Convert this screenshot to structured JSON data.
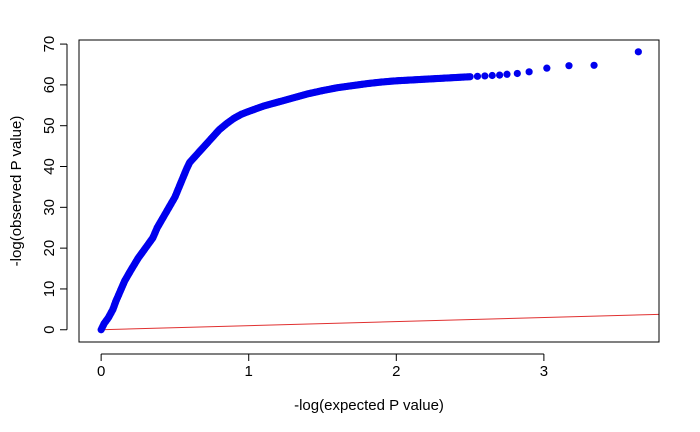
{
  "chart_data": {
    "type": "scatter",
    "title": "",
    "xlabel": "-log(expected P value)",
    "ylabel": "-log(observed P value)",
    "xlim": [
      -0.15,
      3.78
    ],
    "ylim": [
      -3,
      71
    ],
    "x_ticks": [
      0,
      1,
      2,
      3
    ],
    "y_ticks": [
      0,
      10,
      20,
      30,
      40,
      50,
      60,
      70
    ],
    "grid": false,
    "colors": {
      "points": "#0000ee",
      "reference_line": "#e03030",
      "axes": "#000000"
    },
    "series": [
      {
        "type": "scatter",
        "dense_curve": [
          [
            0,
            0
          ],
          [
            0.02,
            1.5
          ],
          [
            0.05,
            3
          ],
          [
            0.08,
            5
          ],
          [
            0.1,
            7
          ],
          [
            0.13,
            9.5
          ],
          [
            0.16,
            12
          ],
          [
            0.2,
            14.5
          ],
          [
            0.25,
            17.5
          ],
          [
            0.3,
            20
          ],
          [
            0.35,
            22.5
          ],
          [
            0.38,
            25
          ],
          [
            0.42,
            27.5
          ],
          [
            0.46,
            30
          ],
          [
            0.5,
            32.5
          ],
          [
            0.54,
            36
          ],
          [
            0.58,
            39.5
          ],
          [
            0.6,
            41
          ],
          [
            0.65,
            43
          ],
          [
            0.7,
            45
          ],
          [
            0.75,
            47
          ],
          [
            0.8,
            49
          ],
          [
            0.85,
            50.5
          ],
          [
            0.9,
            51.8
          ],
          [
            0.95,
            52.8
          ],
          [
            1.0,
            53.5
          ],
          [
            1.1,
            54.8
          ],
          [
            1.2,
            55.8
          ],
          [
            1.3,
            56.8
          ],
          [
            1.4,
            57.8
          ],
          [
            1.5,
            58.6
          ],
          [
            1.6,
            59.3
          ],
          [
            1.7,
            59.8
          ],
          [
            1.8,
            60.3
          ],
          [
            1.9,
            60.7
          ],
          [
            2.0,
            61.0
          ],
          [
            2.1,
            61.2
          ],
          [
            2.2,
            61.4
          ],
          [
            2.3,
            61.6
          ],
          [
            2.4,
            61.8
          ],
          [
            2.5,
            62.0
          ]
        ],
        "points": [
          [
            2.55,
            62.1
          ],
          [
            2.6,
            62.2
          ],
          [
            2.65,
            62.3
          ],
          [
            2.7,
            62.4
          ],
          [
            2.75,
            62.6
          ],
          [
            2.82,
            62.8
          ],
          [
            2.9,
            63.2
          ],
          [
            3.02,
            64.1
          ],
          [
            3.17,
            64.7
          ],
          [
            3.34,
            64.8
          ],
          [
            3.64,
            68.1
          ]
        ]
      },
      {
        "type": "line",
        "points": [
          [
            0,
            0
          ],
          [
            3.78,
            3.78
          ]
        ]
      }
    ]
  }
}
